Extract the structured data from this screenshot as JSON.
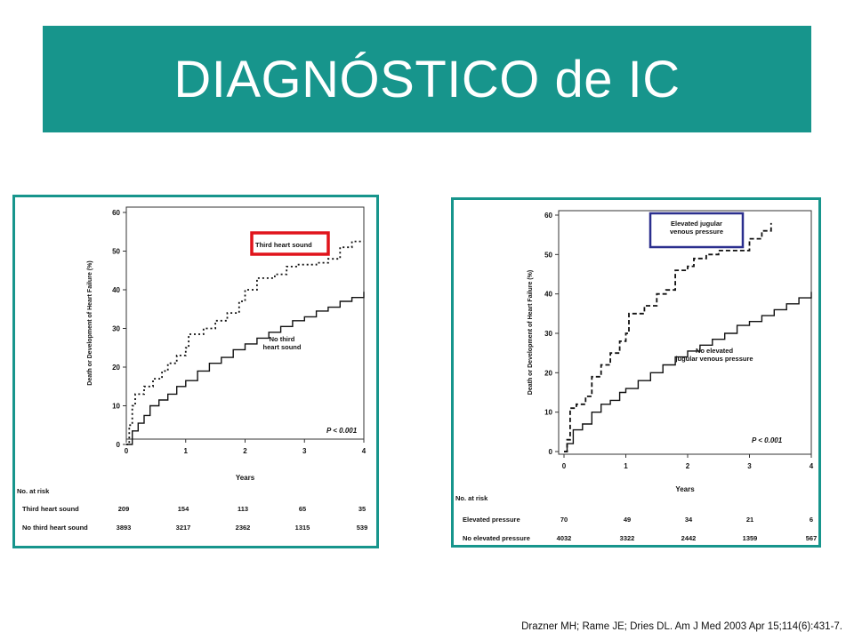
{
  "slide": {
    "title": "DIAGNÓSTICO de IC",
    "citation": "Drazner MH; Rame JE; Dries DL. Am J Med 2003 Apr 15;114(6):431-7.",
    "accent_color": "#17958c"
  },
  "chart_data": [
    {
      "type": "line",
      "ylabel": "Death or Development of Heart Failure (%)",
      "xlabel": "Years",
      "xlim": [
        0,
        4
      ],
      "ylim": [
        0,
        60
      ],
      "x_ticks": [
        "0",
        "1",
        "2",
        "3",
        "4"
      ],
      "y_ticks": [
        "0",
        "10",
        "20",
        "30",
        "40",
        "50",
        "60"
      ],
      "p_value": "P < 0.001",
      "grid": false,
      "series": [
        {
          "name": "Third heart sound",
          "style": "dotted",
          "label_box_color": "#e0141b",
          "x": [
            0,
            0.05,
            0.1,
            0.15,
            0.3,
            0.45,
            0.6,
            0.7,
            0.85,
            1.0,
            1.05,
            1.3,
            1.5,
            1.7,
            1.9,
            2.0,
            2.2,
            2.5,
            2.7,
            2.9,
            3.2,
            3.4,
            3.6,
            3.8,
            4.0
          ],
          "y": [
            0,
            5,
            10,
            13,
            15,
            17,
            19,
            21,
            23,
            25,
            28.5,
            30,
            32,
            34,
            37,
            40,
            43,
            44,
            46,
            46.5,
            47,
            48,
            51,
            52.5,
            52.5
          ]
        },
        {
          "name": "No third heart sound",
          "style": "solid",
          "x": [
            0,
            0.1,
            0.2,
            0.3,
            0.4,
            0.55,
            0.7,
            0.85,
            1.0,
            1.2,
            1.4,
            1.6,
            1.8,
            2.0,
            2.2,
            2.4,
            2.6,
            2.8,
            3.0,
            3.2,
            3.4,
            3.6,
            3.8,
            4.0
          ],
          "y": [
            0,
            3.5,
            5.5,
            7.5,
            10,
            11.5,
            13,
            15,
            16.5,
            19,
            21,
            22.5,
            24.5,
            26,
            27.5,
            29,
            30.5,
            32,
            33,
            34.5,
            35.5,
            37,
            38,
            39.5
          ]
        }
      ],
      "annotations": {
        "label_top": "Third heart sound",
        "label_bottom": [
          "No third",
          "heart sound"
        ]
      },
      "at_risk": {
        "header": "No. at risk",
        "rows": [
          {
            "label": "Third heart sound",
            "values": [
              "209",
              "154",
              "113",
              "65",
              "35"
            ]
          },
          {
            "label": "No third heart sound",
            "values": [
              "3893",
              "3217",
              "2362",
              "1315",
              "539"
            ]
          }
        ]
      }
    },
    {
      "type": "line",
      "ylabel": "Death or Development of Heart Failure (%)",
      "xlabel": "Years",
      "xlim": [
        0,
        4
      ],
      "ylim": [
        0,
        60
      ],
      "x_ticks": [
        "0",
        "1",
        "2",
        "3",
        "4"
      ],
      "y_ticks": [
        "0",
        "10",
        "20",
        "30",
        "40",
        "50",
        "60"
      ],
      "p_value": "P < 0.001",
      "grid": false,
      "series": [
        {
          "name": "Elevated jugular venous pressure",
          "style": "dashed",
          "label_box_color": "#2b2f8e",
          "x": [
            0,
            0.05,
            0.1,
            0.2,
            0.35,
            0.45,
            0.6,
            0.75,
            0.9,
            1.0,
            1.05,
            1.3,
            1.5,
            1.65,
            1.8,
            2.0,
            2.1,
            2.3,
            2.5,
            2.8,
            3.0,
            3.2,
            3.35
          ],
          "y": [
            0,
            3,
            11,
            12,
            14,
            19,
            22,
            25,
            28,
            30,
            35,
            37,
            40,
            41,
            46,
            47,
            49,
            50,
            51,
            51,
            54,
            56,
            58
          ]
        },
        {
          "name": "No elevated jugular venous pressure",
          "style": "solid",
          "x": [
            0,
            0.05,
            0.15,
            0.3,
            0.45,
            0.6,
            0.75,
            0.9,
            1.0,
            1.2,
            1.4,
            1.6,
            1.8,
            2.0,
            2.2,
            2.4,
            2.6,
            2.8,
            3.0,
            3.2,
            3.4,
            3.6,
            3.8,
            4.0
          ],
          "y": [
            0,
            2,
            5.5,
            7,
            10,
            12,
            13,
            15,
            16,
            18,
            20,
            22,
            24,
            25.5,
            27,
            28.5,
            30,
            32,
            33,
            34.5,
            36,
            37.5,
            39,
            40.5
          ]
        }
      ],
      "annotations": {
        "label_top": [
          "Elevated jugular",
          "venous pressure"
        ],
        "label_bottom": [
          "No elevated",
          "jugular venous pressure"
        ]
      },
      "at_risk": {
        "header": "No. at risk",
        "rows": [
          {
            "label": "Elevated pressure",
            "values": [
              "70",
              "49",
              "34",
              "21",
              "6"
            ]
          },
          {
            "label": "No elevated pressure",
            "values": [
              "4032",
              "3322",
              "2442",
              "1359",
              "567"
            ]
          }
        ]
      }
    }
  ]
}
